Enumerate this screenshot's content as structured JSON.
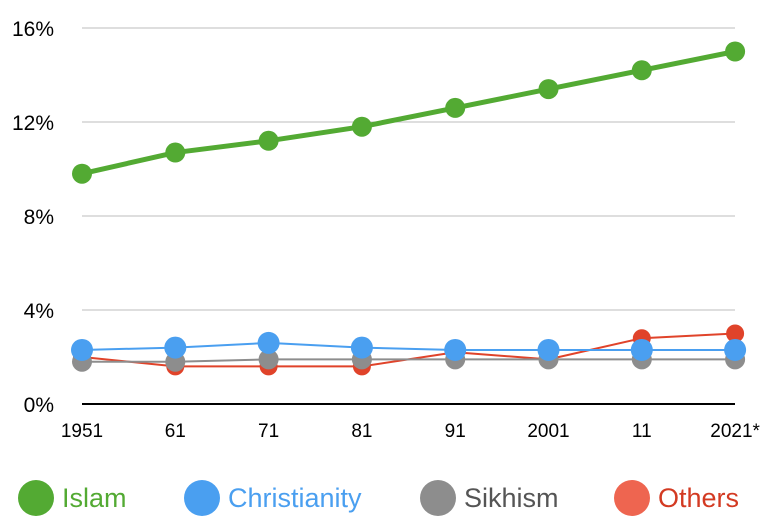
{
  "chart_data": {
    "type": "line",
    "categories": [
      "1951",
      "61",
      "71",
      "81",
      "91",
      "2001",
      "11",
      "2021*"
    ],
    "y_ticks": [
      "0%",
      "4%",
      "8%",
      "12%",
      "16%"
    ],
    "ylim": [
      0,
      16
    ],
    "y_unit": "%",
    "grid": true,
    "legend_position": "bottom",
    "series": [
      {
        "name": "Islam",
        "color": "#53aa33",
        "values": [
          9.8,
          10.7,
          11.2,
          11.8,
          12.6,
          13.4,
          14.2,
          15.0
        ]
      },
      {
        "name": "Christianity",
        "color": "#4a9ff0",
        "values": [
          2.3,
          2.4,
          2.6,
          2.4,
          2.3,
          2.3,
          2.3,
          2.3
        ]
      },
      {
        "name": "Sikhism",
        "color": "#8d8d8d",
        "values": [
          1.8,
          1.8,
          1.9,
          1.9,
          1.9,
          1.9,
          1.9,
          1.9
        ]
      },
      {
        "name": "Others",
        "color": "#e0432a",
        "values": [
          2.0,
          1.6,
          1.6,
          1.6,
          2.2,
          1.9,
          2.8,
          3.0
        ]
      }
    ]
  },
  "legend": {
    "islam": {
      "label": "Islam",
      "color": "#53aa33",
      "text_color": "#53aa33"
    },
    "christianity": {
      "label": "Christianity",
      "color": "#4a9ff0",
      "text_color": "#4a9ff0"
    },
    "sikhism": {
      "label": "Sikhism",
      "color": "#8d8d8d",
      "text_color": "#555555"
    },
    "others": {
      "label": "Others",
      "color": "#ee6550",
      "text_color": "#d33a22"
    }
  }
}
